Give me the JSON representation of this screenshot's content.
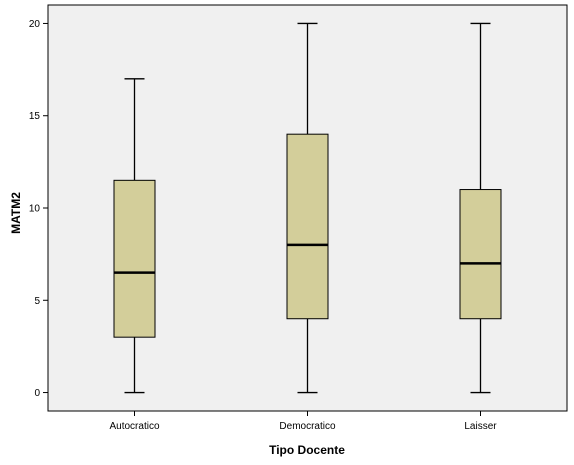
{
  "chart_data": {
    "type": "boxplot",
    "xlabel": "Tipo Docente",
    "ylabel": "MATM2",
    "ylim": [
      -1,
      21
    ],
    "yticks": [
      0,
      5,
      10,
      15,
      20
    ],
    "grid": false,
    "categories": [
      "Autocratico",
      "Democratico",
      "Laisser"
    ],
    "boxes": [
      {
        "category": "Autocratico",
        "min": 0,
        "q1": 3,
        "median": 6.5,
        "q3": 11.5,
        "max": 17
      },
      {
        "category": "Democratico",
        "min": 0,
        "q1": 4,
        "median": 8,
        "q3": 14,
        "max": 20
      },
      {
        "category": "Laisser",
        "min": 0,
        "q1": 4,
        "median": 7,
        "q3": 11,
        "max": 20
      }
    ],
    "colors": {
      "background": "#f0f0f0",
      "box_fill": "#d3ce9a",
      "stroke": "#000000"
    }
  }
}
